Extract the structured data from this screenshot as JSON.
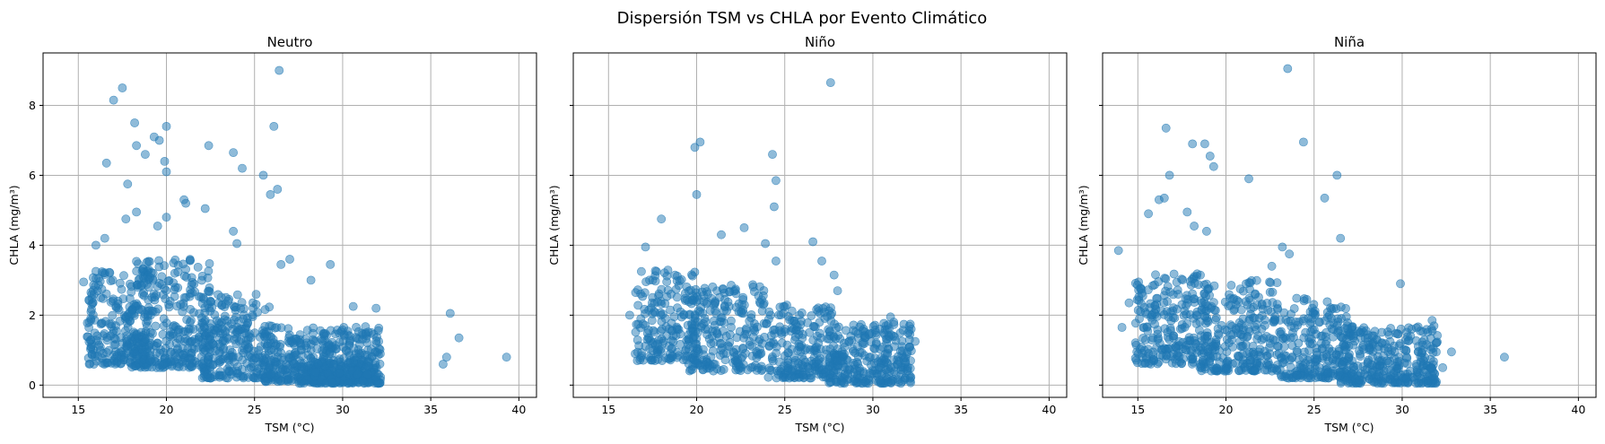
{
  "figure": {
    "title": "Dispersión TSM vs CHLA por Evento Climático"
  },
  "chart_data": [
    {
      "type": "scatter",
      "title": "Neutro",
      "xlabel": "TSM (°C)",
      "ylabel": "CHLA (mg/m³)",
      "xlim": [
        13,
        41
      ],
      "ylim": [
        -0.35,
        9.5
      ],
      "xticks": [
        15,
        20,
        25,
        30,
        35,
        40
      ],
      "yticks": [
        0,
        2,
        4,
        6,
        8
      ],
      "grid": true,
      "color": "#1f77b4",
      "point_opacity": 0.5,
      "points": [
        [
          26.4,
          9.0
        ],
        [
          17.5,
          8.5
        ],
        [
          17.0,
          8.15
        ],
        [
          18.2,
          7.5
        ],
        [
          20.0,
          7.4
        ],
        [
          26.1,
          7.4
        ],
        [
          19.3,
          7.1
        ],
        [
          19.6,
          7.0
        ],
        [
          18.3,
          6.85
        ],
        [
          18.8,
          6.6
        ],
        [
          22.4,
          6.85
        ],
        [
          23.8,
          6.65
        ],
        [
          16.6,
          6.35
        ],
        [
          19.9,
          6.4
        ],
        [
          20.0,
          6.1
        ],
        [
          24.3,
          6.2
        ],
        [
          25.5,
          6.0
        ],
        [
          26.3,
          5.6
        ],
        [
          17.8,
          5.75
        ],
        [
          25.9,
          5.45
        ],
        [
          21.0,
          5.3
        ],
        [
          21.1,
          5.2
        ],
        [
          22.2,
          5.05
        ],
        [
          18.3,
          4.95
        ],
        [
          17.7,
          4.75
        ],
        [
          19.5,
          4.55
        ],
        [
          20.0,
          4.8
        ],
        [
          23.8,
          4.4
        ],
        [
          16.0,
          4.0
        ],
        [
          16.5,
          4.2
        ],
        [
          24.0,
          4.05
        ],
        [
          26.5,
          3.45
        ],
        [
          27.0,
          3.6
        ],
        [
          28.2,
          3.0
        ],
        [
          29.3,
          3.45
        ],
        [
          30.6,
          2.25
        ],
        [
          31.9,
          2.2
        ],
        [
          15.3,
          2.95
        ],
        [
          35.7,
          0.6
        ],
        [
          35.9,
          0.8
        ],
        [
          36.1,
          2.05
        ],
        [
          36.6,
          1.35
        ],
        [
          39.3,
          0.8
        ]
      ],
      "clusters": [
        {
          "x": [
            15.5,
            19.0
          ],
          "y": [
            0.6,
            3.3
          ],
          "n": 230
        },
        {
          "x": [
            18.0,
            22.5
          ],
          "y": [
            0.5,
            3.6
          ],
          "n": 320
        },
        {
          "x": [
            22.0,
            26.0
          ],
          "y": [
            0.2,
            2.6
          ],
          "n": 260
        },
        {
          "x": [
            25.5,
            32.2
          ],
          "y": [
            0.1,
            1.7
          ],
          "n": 420
        },
        {
          "x": [
            27.5,
            32.2
          ],
          "y": [
            0.05,
            0.7
          ],
          "n": 220
        }
      ]
    },
    {
      "type": "scatter",
      "title": "Niño",
      "xlabel": "TSM (°C)",
      "ylabel": "CHLA (mg/m³)",
      "xlim": [
        13,
        41
      ],
      "ylim": [
        -0.35,
        9.5
      ],
      "xticks": [
        15,
        20,
        25,
        30,
        35,
        40
      ],
      "yticks": [
        0,
        2,
        4,
        6,
        8
      ],
      "grid": true,
      "color": "#1f77b4",
      "point_opacity": 0.5,
      "points": [
        [
          27.6,
          8.65
        ],
        [
          20.2,
          6.95
        ],
        [
          19.9,
          6.8
        ],
        [
          24.3,
          6.6
        ],
        [
          24.5,
          5.85
        ],
        [
          20.0,
          5.45
        ],
        [
          24.4,
          5.1
        ],
        [
          22.7,
          4.5
        ],
        [
          18.0,
          4.75
        ],
        [
          21.4,
          4.3
        ],
        [
          17.1,
          3.95
        ],
        [
          23.9,
          4.05
        ],
        [
          26.6,
          4.1
        ],
        [
          24.5,
          3.55
        ],
        [
          27.1,
          3.55
        ],
        [
          27.8,
          3.15
        ],
        [
          16.2,
          2.0
        ],
        [
          28.0,
          2.7
        ],
        [
          31.0,
          1.95
        ],
        [
          32.1,
          1.45
        ],
        [
          32.4,
          1.25
        ]
      ],
      "clusters": [
        {
          "x": [
            16.5,
            20.0
          ],
          "y": [
            0.7,
            3.3
          ],
          "n": 180
        },
        {
          "x": [
            19.5,
            24.0
          ],
          "y": [
            0.4,
            2.9
          ],
          "n": 240
        },
        {
          "x": [
            24.0,
            28.0
          ],
          "y": [
            0.2,
            2.3
          ],
          "n": 220
        },
        {
          "x": [
            27.5,
            32.3
          ],
          "y": [
            0.05,
            1.8
          ],
          "n": 280
        }
      ]
    },
    {
      "type": "scatter",
      "title": "Niña",
      "xlabel": "TSM (°C)",
      "ylabel": "CHLA (mg/m³)",
      "xlim": [
        13,
        41
      ],
      "ylim": [
        -0.35,
        9.5
      ],
      "xticks": [
        15,
        20,
        25,
        30,
        35,
        40
      ],
      "yticks": [
        0,
        2,
        4,
        6,
        8
      ],
      "grid": true,
      "color": "#1f77b4",
      "point_opacity": 0.5,
      "points": [
        [
          23.5,
          9.05
        ],
        [
          16.6,
          7.35
        ],
        [
          18.1,
          6.9
        ],
        [
          18.8,
          6.9
        ],
        [
          19.1,
          6.55
        ],
        [
          24.4,
          6.95
        ],
        [
          19.3,
          6.25
        ],
        [
          16.8,
          6.0
        ],
        [
          21.3,
          5.9
        ],
        [
          26.3,
          6.0
        ],
        [
          25.6,
          5.35
        ],
        [
          16.2,
          5.3
        ],
        [
          16.5,
          5.35
        ],
        [
          15.6,
          4.9
        ],
        [
          17.8,
          4.95
        ],
        [
          18.2,
          4.55
        ],
        [
          18.9,
          4.4
        ],
        [
          13.9,
          3.85
        ],
        [
          23.2,
          3.95
        ],
        [
          26.5,
          4.2
        ],
        [
          22.6,
          3.4
        ],
        [
          23.6,
          3.75
        ],
        [
          29.9,
          2.9
        ],
        [
          31.7,
          1.85
        ],
        [
          32.3,
          0.5
        ],
        [
          32.8,
          0.95
        ],
        [
          35.8,
          0.8
        ],
        [
          14.1,
          1.65
        ],
        [
          14.5,
          2.35
        ]
      ],
      "clusters": [
        {
          "x": [
            14.8,
            19.0
          ],
          "y": [
            0.6,
            3.2
          ],
          "n": 240
        },
        {
          "x": [
            18.5,
            23.0
          ],
          "y": [
            0.4,
            3.0
          ],
          "n": 260
        },
        {
          "x": [
            23.0,
            27.0
          ],
          "y": [
            0.2,
            2.5
          ],
          "n": 230
        },
        {
          "x": [
            26.5,
            32.0
          ],
          "y": [
            0.05,
            1.7
          ],
          "n": 330
        }
      ]
    }
  ]
}
